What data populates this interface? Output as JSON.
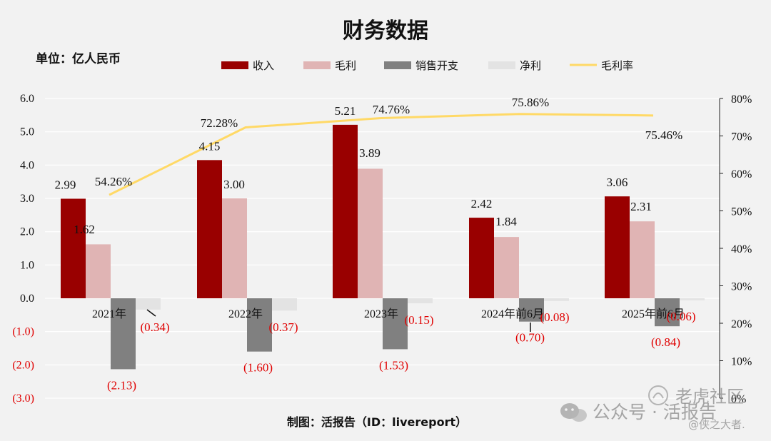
{
  "unit_label": "单位：亿人民币",
  "source": "制图：活报告（ID：livereport）",
  "watermark": {
    "main": "公众号 · 活报告",
    "overlay": "老虎社区",
    "handle": "@侠之大者."
  },
  "colors": {
    "revenue": "#990000",
    "gross_profit": "#e0b4b4",
    "selling_expense": "#808080",
    "net_profit": "#e3e3e3",
    "margin_line": "#ffd966",
    "negative_text": "#e00000"
  },
  "chart_data": {
    "type": "bar",
    "title": "财务数据",
    "categories": [
      "2021年",
      "2022年",
      "2023年",
      "2024年前6月",
      "2025年前6月"
    ],
    "series": [
      {
        "name": "收入",
        "key": "revenue",
        "values": [
          2.99,
          4.15,
          5.21,
          2.42,
          3.06
        ],
        "labels": [
          "2.99",
          "4.15",
          "5.21",
          "2.42",
          "3.06"
        ]
      },
      {
        "name": "毛利",
        "key": "gross_profit",
        "values": [
          1.62,
          3.0,
          3.89,
          1.84,
          2.31
        ],
        "labels": [
          "1.62",
          "3.00",
          "3.89",
          "1.84",
          "2.31"
        ]
      },
      {
        "name": "销售开支",
        "key": "selling_expense",
        "values": [
          -2.13,
          -1.6,
          -1.53,
          -0.7,
          -0.84
        ],
        "labels": [
          "(2.13)",
          "(1.60)",
          "(1.53)",
          "(0.70)",
          "(0.84)"
        ]
      },
      {
        "name": "净利",
        "key": "net_profit",
        "values": [
          -0.34,
          -0.37,
          -0.15,
          -0.08,
          -0.06
        ],
        "labels": [
          "(0.34)",
          "(0.37)",
          "(0.15)",
          "(0.08)",
          "(0.06)"
        ]
      }
    ],
    "line_series": {
      "name": "毛利率",
      "key": "margin",
      "values": [
        54.26,
        72.28,
        74.76,
        75.86,
        75.46
      ],
      "labels": [
        "54.26%",
        "72.28%",
        "74.76%",
        "75.86%",
        "75.46%"
      ]
    },
    "y_left": {
      "ylim": [
        -3.0,
        6.0
      ],
      "ticks": [
        6,
        5,
        4,
        3,
        2,
        1,
        0,
        -1,
        -2,
        -3
      ],
      "tick_labels": [
        "6.0",
        "5.0",
        "4.0",
        "3.0",
        "2.0",
        "1.0",
        "0.0",
        "(1.0)",
        "(2.0)",
        "(3.0)"
      ]
    },
    "y_right": {
      "ylim": [
        0,
        80
      ],
      "ticks": [
        80,
        70,
        60,
        50,
        40,
        30,
        20,
        10,
        0
      ],
      "tick_labels": [
        "80%",
        "70%",
        "60%",
        "50%",
        "40%",
        "30%",
        "20%",
        "10%",
        "0%"
      ]
    },
    "legend": [
      "收入",
      "毛利",
      "销售开支",
      "净利",
      "毛利率"
    ],
    "legend_position": "top-center",
    "grid": true
  }
}
